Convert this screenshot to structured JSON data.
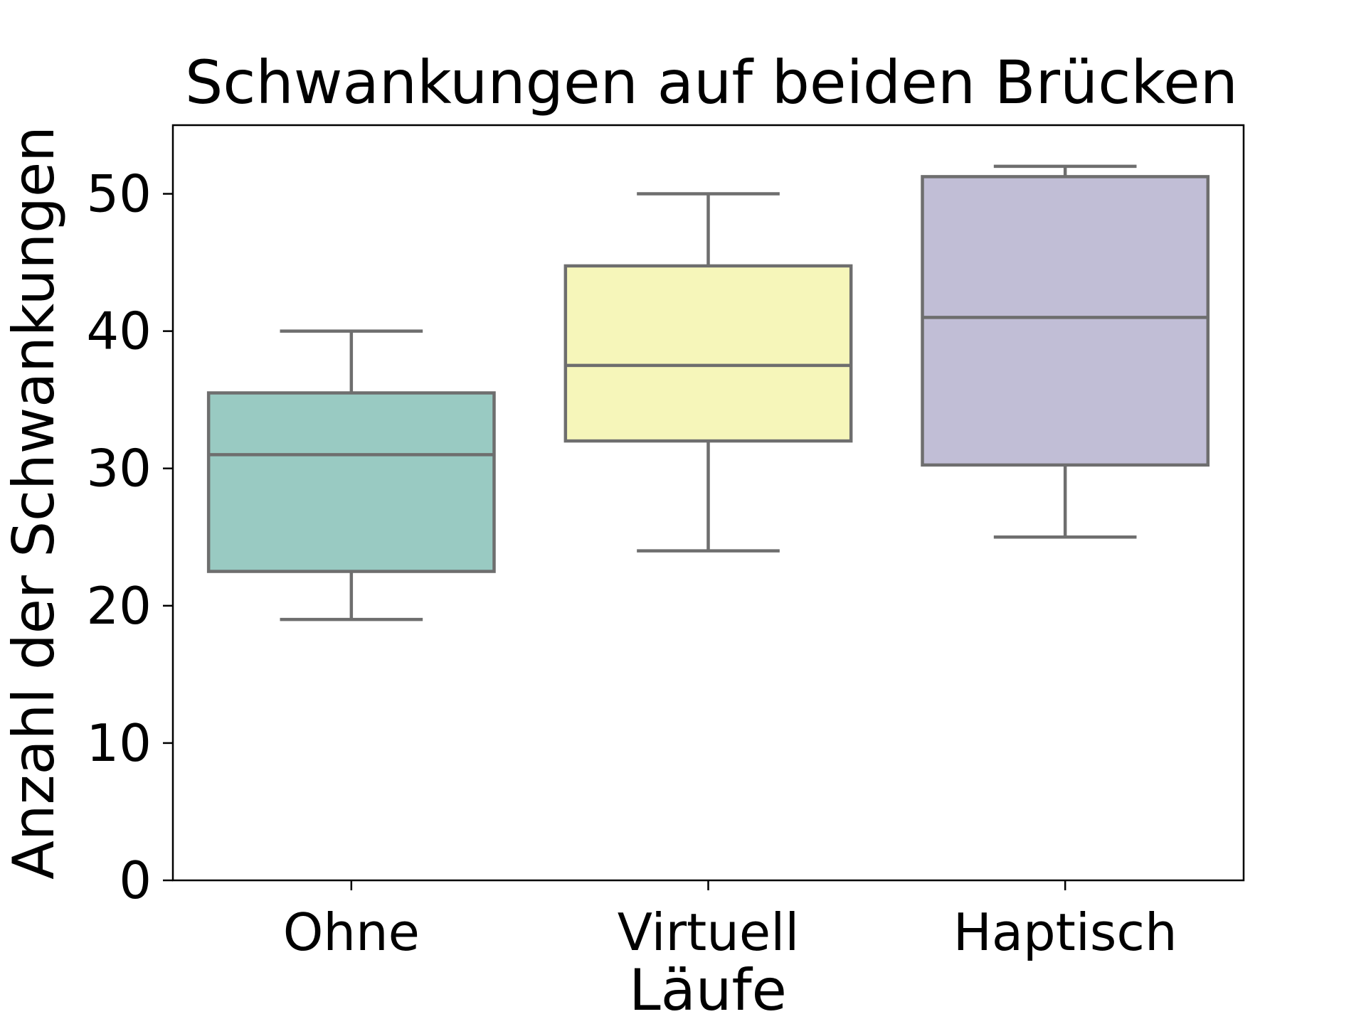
{
  "chart_data": {
    "type": "box",
    "title": "Schwankungen auf beiden Brücken",
    "xlabel": "Läufe",
    "ylabel": "Anzahl der Schwankungen",
    "ylim": [
      0,
      55
    ],
    "yticks": [
      0,
      10,
      20,
      30,
      40,
      50
    ],
    "categories": [
      "Ohne",
      "Virtuell",
      "Haptisch"
    ],
    "boxes": [
      {
        "category": "Ohne",
        "whisker_low": 19,
        "q1": 22.5,
        "median": 31,
        "q3": 35.5,
        "whisker_high": 40,
        "color": "#99cac2"
      },
      {
        "category": "Virtuell",
        "whisker_low": 24,
        "q1": 32,
        "median": 37.5,
        "q3": 44.75,
        "whisker_high": 50,
        "color": "#f6f6ba"
      },
      {
        "category": "Haptisch",
        "whisker_low": 25,
        "q1": 30.25,
        "median": 41,
        "q3": 51.25,
        "whisker_high": 52,
        "color": "#c1bed6"
      }
    ],
    "grid": false,
    "legend": "none",
    "line_color": "#6e6e6e"
  }
}
